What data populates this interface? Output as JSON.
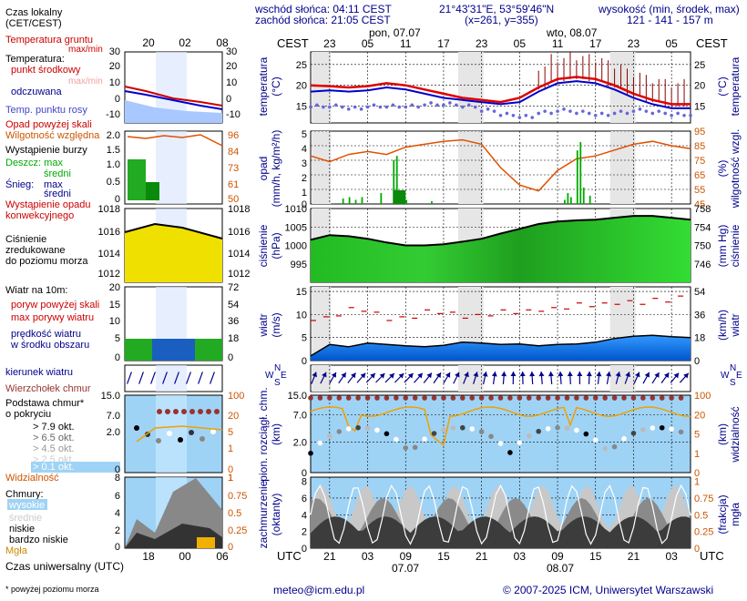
{
  "header": {
    "sunrise": "wschód słońca: 04:11 CEST",
    "sunset": "zachód słońca: 21:05 CEST",
    "coords": "21°43'31\"E, 53°59'46\"N",
    "grid": "(x=261,  y=355)",
    "elev_title": "wysokość (min, środek, max)",
    "elev_values": "121 - 141 - 157 m"
  },
  "top_axis": {
    "cest_left": "CEST",
    "cest_right": "CEST",
    "day1": "pon, 07.07",
    "day2": "wto, 08.07",
    "hour_ticks": [
      "23",
      "05",
      "11",
      "17",
      "23",
      "05",
      "11",
      "17",
      "23",
      "05"
    ]
  },
  "bottom_axis": {
    "utc_left": "UTC",
    "utc_right": "UTC",
    "hour_ticks": [
      "21",
      "03",
      "09",
      "15",
      "21",
      "03",
      "09",
      "15",
      "21",
      "03"
    ],
    "date1": "07.07",
    "date2": "08.07"
  },
  "legend": {
    "time_label": "Czas lokalny\n(CET/CEST)",
    "time_ticks": [
      "20",
      "02",
      "08"
    ],
    "temp": {
      "soil": "Temperatura gruntu",
      "maxmin": "max/min",
      "title": "Temperatura:",
      "mid": "punkt środkowy",
      "maxmin2": "max/min",
      "felt": "odczuwana",
      "dew": "Temp. punktu rosy",
      "ticks_l": [
        "30",
        "20",
        "10",
        "0",
        "-10"
      ],
      "ticks_r": [
        "30",
        "20",
        "10",
        "0",
        "-10"
      ]
    },
    "precip": {
      "over_scale": "Opad powyżej skali",
      "humidity": "Wilgotność względna",
      "storm": "Wystąpienie burzy",
      "rain_max": "Deszcz: max",
      "rain_mean": "średni",
      "snow_max": "max",
      "snow_label": "Śnieg:",
      "snow_mean": "średni",
      "conv": "Wystąpienie opadu\nkonwekcyjnego",
      "ticks_l": [
        "2.0",
        "1.5",
        "1.0",
        "0.5",
        "0"
      ],
      "ticks_r": [
        "96",
        "84",
        "73",
        "61",
        "50"
      ]
    },
    "pressure": {
      "title": "Ciśnienie\nzredukowane\ndo poziomu morza",
      "ticks_l": [
        "1018",
        "1016",
        "1014",
        "1012"
      ],
      "ticks_r": [
        "1018",
        "1016",
        "1014",
        "1012"
      ]
    },
    "wind": {
      "title": "Wiatr na 10m:",
      "gust_over": "poryw powyżej skali",
      "gust_max": "max porywy wiatru",
      "speed": "prędkość wiatru\nw środku obszaru",
      "ticks_l": [
        "20",
        "15",
        "10",
        "5",
        "0"
      ],
      "ticks_r": [
        "72",
        "54",
        "36",
        "18",
        "0"
      ]
    },
    "direction": {
      "title": "kierunek wiatru"
    },
    "cloudbase": {
      "top_label": "Wierzchołek chmur",
      "base_label": "Podstawa chmur*\no pokryciu",
      "okt1": "> 7.9 okt.",
      "okt2": "> 6.5 okt.",
      "okt3": "> 4.5 okt.",
      "okt4": "> 2.5 okt.",
      "okt5": "> 0.1 okt.",
      "visibility": "Widzialność",
      "ticks_l": [
        "15.0",
        "7.0",
        "2.0",
        "0"
      ],
      "ticks_r": [
        "100",
        "20",
        "5",
        "1",
        "0"
      ],
      "ticks_r2": [
        "1"
      ]
    },
    "clouds": {
      "title": "Chmury:",
      "high": "wysokie",
      "mid": "średnie",
      "low": "niskie",
      "vlow": "bardzo niskie",
      "fog": "Mgła",
      "ticks_l": [
        "8",
        "6",
        "4",
        "2",
        "0"
      ],
      "ticks_r": [
        "1",
        "0.75",
        "0.5",
        "0.25",
        "0"
      ]
    },
    "utc_title": "Czas uniwersalny (UTC)",
    "utc_ticks": [
      "18",
      "00",
      "06"
    ],
    "footnote": "* powyżej poziomu morza"
  },
  "main_axes": {
    "temp": {
      "ylabel_l": "temperatura\n(°C)",
      "ylabel_r": "(°C)\ntemperatura",
      "ticks": [
        "25",
        "20",
        "15"
      ]
    },
    "precip": {
      "ylabel_l": "opad\n(mm/h, kg/m²/h)",
      "ylabel_r": "(%)\nwilgotność wzgl.",
      "ticks_l": [
        "5",
        "4",
        "3",
        "2",
        "1",
        "0"
      ],
      "ticks_r": [
        "95",
        "85",
        "75",
        "65",
        "55",
        "45"
      ]
    },
    "pressure": {
      "ylabel_l": "ciśnienie\n(hPa)",
      "ylabel_r": "(mm Hg)\nciśnienie",
      "ticks_l": [
        "1010",
        "1005",
        "1000",
        "995"
      ],
      "ticks_r": [
        "758",
        "754",
        "750",
        "746"
      ]
    },
    "wind": {
      "ylabel_l": "wiatr\n(m/s)",
      "ylabel_r": "(km/h)\nwiatr",
      "ticks_l": [
        "15",
        "10",
        "5",
        "0"
      ],
      "ticks_r": [
        "54",
        "36",
        "18",
        "0"
      ]
    },
    "cloudbase": {
      "ylabel_l": "pion. rozciągł. chm.\n(km)",
      "ylabel_r": "(km)\nwidzialność",
      "ticks_l": [
        "15.0",
        "7.0",
        "2.0",
        "0"
      ],
      "ticks_r": [
        "100",
        "20",
        "5",
        "1",
        "0"
      ]
    },
    "clouds": {
      "ylabel_l": "zachmurzenie\n(oktanty)",
      "ylabel_r": "(frakcja)\nmgła",
      "ticks_l": [
        "8",
        "6",
        "4",
        "2",
        "0"
      ],
      "ticks_r": [
        "1",
        "0.75",
        "0.5",
        "0.25",
        "0"
      ]
    }
  },
  "wind_dir_labels": {
    "n": "N",
    "w": "W",
    "s": "S",
    "e": "E"
  },
  "footer": {
    "email": "meteo@icm.edu.pl",
    "copyright": "© 2007-2025 ICM, Uniwersytet Warszawski"
  },
  "chart_data": [
    {
      "type": "line",
      "title": "temperatura (°C)",
      "x_hours_from_start": [
        0,
        3,
        6,
        9,
        12,
        15,
        18,
        21,
        24,
        27,
        30,
        33,
        36,
        39,
        42,
        45,
        48,
        51,
        54,
        57,
        60
      ],
      "series": [
        {
          "name": "punkt środkowy",
          "values": [
            20,
            19.8,
            19.5,
            19.8,
            20.5,
            20,
            19,
            18,
            17,
            16.5,
            16,
            17,
            19.5,
            21.5,
            22,
            21.5,
            20,
            18,
            16.5,
            15.5,
            15.5
          ]
        },
        {
          "name": "odczuwana",
          "values": [
            18.5,
            18.8,
            18.5,
            18.8,
            19.5,
            19,
            18,
            17,
            16.5,
            16,
            15.5,
            16,
            18.5,
            20.5,
            21,
            20.5,
            19,
            17,
            15.5,
            14.5,
            14.5
          ]
        },
        {
          "name": "Temp. punktu rosy",
          "values": [
            15,
            15,
            14.5,
            15,
            15,
            15,
            15.5,
            15.5,
            15,
            14,
            13,
            12.5,
            13.5,
            14,
            13.5,
            13,
            13.5,
            14,
            13.5,
            13,
            13
          ]
        }
      ],
      "ylim": [
        11,
        28
      ]
    },
    {
      "type": "line",
      "title": "wilgotność wzgl. (%)",
      "x_hours_from_start": [
        0,
        3,
        6,
        9,
        12,
        15,
        18,
        21,
        24,
        27,
        30,
        33,
        36,
        39,
        42,
        45,
        48,
        51,
        54,
        57,
        60
      ],
      "series": [
        {
          "name": "Wilgotność względna",
          "values": [
            78,
            74,
            79,
            81,
            79,
            84,
            86,
            88,
            89,
            86,
            70,
            58,
            54,
            68,
            76,
            78,
            82,
            86,
            88,
            85,
            83
          ]
        }
      ],
      "ylim": [
        45,
        95
      ]
    },
    {
      "type": "area",
      "title": "ciśnienie (hPa)",
      "x_hours_from_start": [
        0,
        3,
        6,
        9,
        12,
        15,
        18,
        21,
        24,
        27,
        30,
        33,
        36,
        39,
        42,
        45,
        48,
        51,
        54,
        57,
        60
      ],
      "series": [
        {
          "name": "ciśnienie",
          "values": [
            1001.5,
            1002.8,
            1002.5,
            1001.8,
            1000.8,
            1000,
            1000,
            1000.3,
            1001,
            1001.8,
            1003.2,
            1004.5,
            1005.8,
            1006.5,
            1006.8,
            1007,
            1007.5,
            1008,
            1008,
            1007.5,
            1007
          ]
        }
      ],
      "ylim": [
        990,
        1010
      ]
    },
    {
      "type": "area",
      "title": "wiatr (m/s)",
      "x_hours_from_start": [
        0,
        3,
        6,
        9,
        12,
        15,
        18,
        21,
        24,
        27,
        30,
        33,
        36,
        39,
        42,
        45,
        48,
        51,
        54,
        57,
        60
      ],
      "series": [
        {
          "name": "prędkość wiatru",
          "values": [
            1,
            3.5,
            3,
            3.8,
            3.5,
            3.2,
            3,
            3.3,
            4,
            3.8,
            3.5,
            3.6,
            3.2,
            3.5,
            3.6,
            4,
            4.8,
            5.3,
            5.5,
            5.2,
            5
          ]
        },
        {
          "name": "max porywy wiatru",
          "values": [
            9,
            10,
            11,
            10,
            9,
            9.5,
            10.5,
            10,
            9.5,
            10,
            10.5,
            10.5,
            11,
            11.5,
            12,
            12,
            12.5,
            12.5,
            13,
            13.5,
            14
          ]
        }
      ],
      "ylim": [
        0,
        15
      ]
    }
  ]
}
